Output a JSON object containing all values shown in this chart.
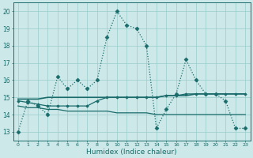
{
  "title": "",
  "xlabel": "Humidex (Indice chaleur)",
  "bg_color": "#cce8e8",
  "grid_color": "#99cccc",
  "line_color": "#1a6b6b",
  "xlim": [
    -0.5,
    23.5
  ],
  "ylim": [
    12.5,
    20.5
  ],
  "yticks": [
    13,
    14,
    15,
    16,
    17,
    18,
    19,
    20
  ],
  "xticks": [
    0,
    1,
    2,
    3,
    4,
    5,
    6,
    7,
    8,
    9,
    10,
    11,
    12,
    13,
    14,
    15,
    16,
    17,
    18,
    19,
    20,
    21,
    22,
    23
  ],
  "series": [
    {
      "x": [
        0,
        1,
        2,
        3,
        4,
        5,
        6,
        7,
        8,
        9,
        10,
        11,
        12,
        13,
        14,
        15,
        16,
        17,
        18,
        19,
        20,
        21,
        22,
        23
      ],
      "y": [
        13.0,
        14.8,
        14.5,
        14.0,
        16.2,
        15.5,
        16.0,
        15.5,
        16.0,
        18.5,
        20.0,
        19.2,
        19.0,
        18.0,
        13.2,
        14.3,
        15.2,
        17.2,
        16.0,
        15.2,
        15.2,
        14.8,
        13.2,
        13.2
      ],
      "marker": "D",
      "markersize": 2.5,
      "linewidth": 0.9,
      "linestyle": ":"
    },
    {
      "x": [
        0,
        1,
        2,
        3,
        4,
        5,
        6,
        7,
        8,
        9,
        10,
        11,
        12,
        13,
        14,
        15,
        16,
        17,
        18,
        19,
        20,
        21,
        22,
        23
      ],
      "y": [
        14.9,
        14.9,
        14.9,
        15.0,
        15.0,
        15.0,
        15.0,
        15.0,
        15.0,
        15.0,
        15.0,
        15.0,
        15.0,
        15.0,
        15.0,
        15.1,
        15.1,
        15.1,
        15.2,
        15.2,
        15.2,
        15.2,
        15.2,
        15.2
      ],
      "marker": null,
      "markersize": 0,
      "linewidth": 1.2,
      "linestyle": "-"
    },
    {
      "x": [
        0,
        1,
        2,
        3,
        4,
        5,
        6,
        7,
        8,
        9,
        10,
        11,
        12,
        13,
        14,
        15,
        16,
        17,
        18,
        19,
        20,
        21,
        22,
        23
      ],
      "y": [
        14.5,
        14.4,
        14.4,
        14.3,
        14.3,
        14.2,
        14.2,
        14.2,
        14.2,
        14.2,
        14.1,
        14.1,
        14.1,
        14.1,
        14.0,
        14.0,
        14.0,
        14.0,
        14.0,
        14.0,
        14.0,
        14.0,
        14.0,
        14.0
      ],
      "marker": null,
      "markersize": 0,
      "linewidth": 0.9,
      "linestyle": "-"
    },
    {
      "x": [
        0,
        1,
        2,
        3,
        4,
        5,
        6,
        7,
        8,
        9,
        10,
        11,
        12,
        13,
        14,
        15,
        16,
        17,
        18,
        19,
        20,
        21,
        22,
        23
      ],
      "y": [
        14.8,
        14.7,
        14.6,
        14.5,
        14.5,
        14.5,
        14.5,
        14.5,
        14.8,
        15.0,
        15.0,
        15.0,
        15.0,
        15.0,
        15.0,
        15.1,
        15.1,
        15.2,
        15.2,
        15.2,
        15.2,
        15.2,
        15.2,
        15.2
      ],
      "marker": "D",
      "markersize": 1.8,
      "linewidth": 0.9,
      "linestyle": "-"
    }
  ]
}
